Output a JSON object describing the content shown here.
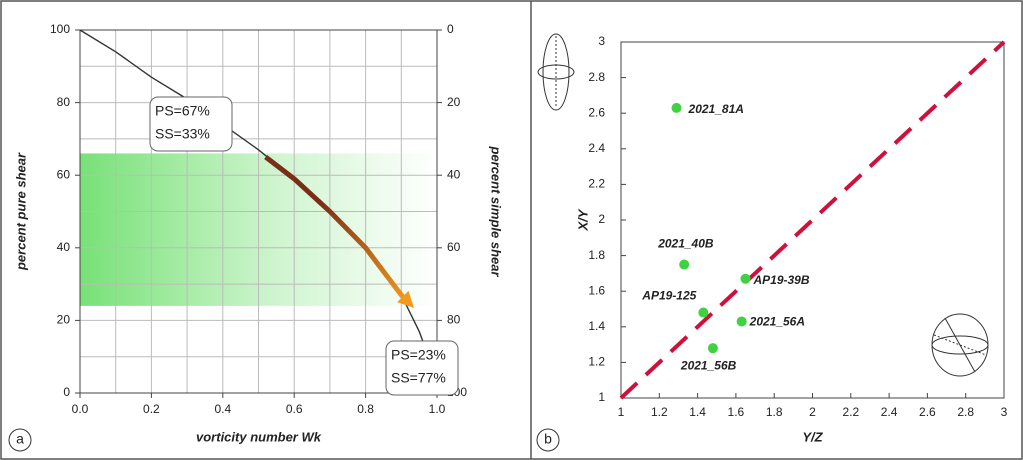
{
  "chart_data": [
    {
      "type": "line",
      "panel_label": "a",
      "xlabel": "vorticity number Wk",
      "ylabel": "percent pure shear",
      "y2label": "percent simple shear",
      "xlim": [
        0,
        1
      ],
      "ylim": [
        0,
        100
      ],
      "y2lim": [
        100,
        0
      ],
      "xticks": [
        {
          "value": 0,
          "label": "0.0"
        },
        {
          "value": 0.2,
          "label": "0.2"
        },
        {
          "value": 0.4,
          "label": "0.4"
        },
        {
          "value": 0.6,
          "label": "0.6"
        },
        {
          "value": 0.8,
          "label": "0.8"
        },
        {
          "value": 1,
          "label": "1.0"
        }
      ],
      "yticks": [
        0,
        20,
        40,
        60,
        80,
        100
      ],
      "y2ticks": [
        0,
        20,
        40,
        60,
        80,
        100
      ],
      "xminor": [
        0.1,
        0.3,
        0.5,
        0.7,
        0.9
      ],
      "yminor": [
        10,
        30,
        50,
        70,
        90
      ],
      "grid": true,
      "shaded_range": [
        24,
        66
      ],
      "shade_color": "#5fdc5f",
      "series": [
        {
          "color": "#333333",
          "x": [
            0,
            0.1,
            0.2,
            0.3,
            0.4,
            0.5,
            0.6,
            0.7,
            0.8,
            0.85,
            0.9,
            0.95,
            0.98,
            1.0
          ],
          "values": [
            100,
            94,
            87,
            81,
            74,
            67,
            59,
            50,
            40,
            34,
            27,
            17,
            9,
            0
          ]
        },
        {
          "color": "#7a2e18",
          "end_color": "#f39a1e",
          "x": [
            0.52,
            0.6,
            0.7,
            0.8,
            0.9,
            0.92
          ],
          "values": [
            65,
            59,
            50,
            40,
            27,
            25
          ]
        }
      ],
      "annotations": [
        {
          "lines": [
            "PS=67%",
            "SS=33%"
          ]
        },
        {
          "lines": [
            "PS=23%",
            "SS=77%"
          ]
        }
      ]
    },
    {
      "type": "scatter",
      "panel_label": "b",
      "xlabel": "Y/Z",
      "ylabel": "X/Y",
      "xlim": [
        1,
        3
      ],
      "ylim": [
        1,
        3
      ],
      "xticks": [
        1,
        1.2,
        1.4,
        1.6,
        1.8,
        2,
        2.2,
        2.4,
        2.6,
        2.8,
        3
      ],
      "yticks": [
        1,
        1.2,
        1.4,
        1.6,
        1.8,
        2,
        2.2,
        2.4,
        2.6,
        2.8,
        3
      ],
      "points": {
        "color": "#3fd13f",
        "labels": [
          "2021_81A",
          "2021_40B",
          "AP19-39B",
          "AP19-125",
          "2021_56A",
          "2021_56B"
        ],
        "x": [
          1.29,
          1.33,
          1.65,
          1.43,
          1.63,
          1.48
        ],
        "values": [
          2.63,
          1.75,
          1.67,
          1.48,
          1.43,
          1.28
        ]
      },
      "reference_line": {
        "color": "#d0103a",
        "x": [
          1,
          3
        ],
        "values": [
          1,
          3
        ]
      }
    }
  ]
}
